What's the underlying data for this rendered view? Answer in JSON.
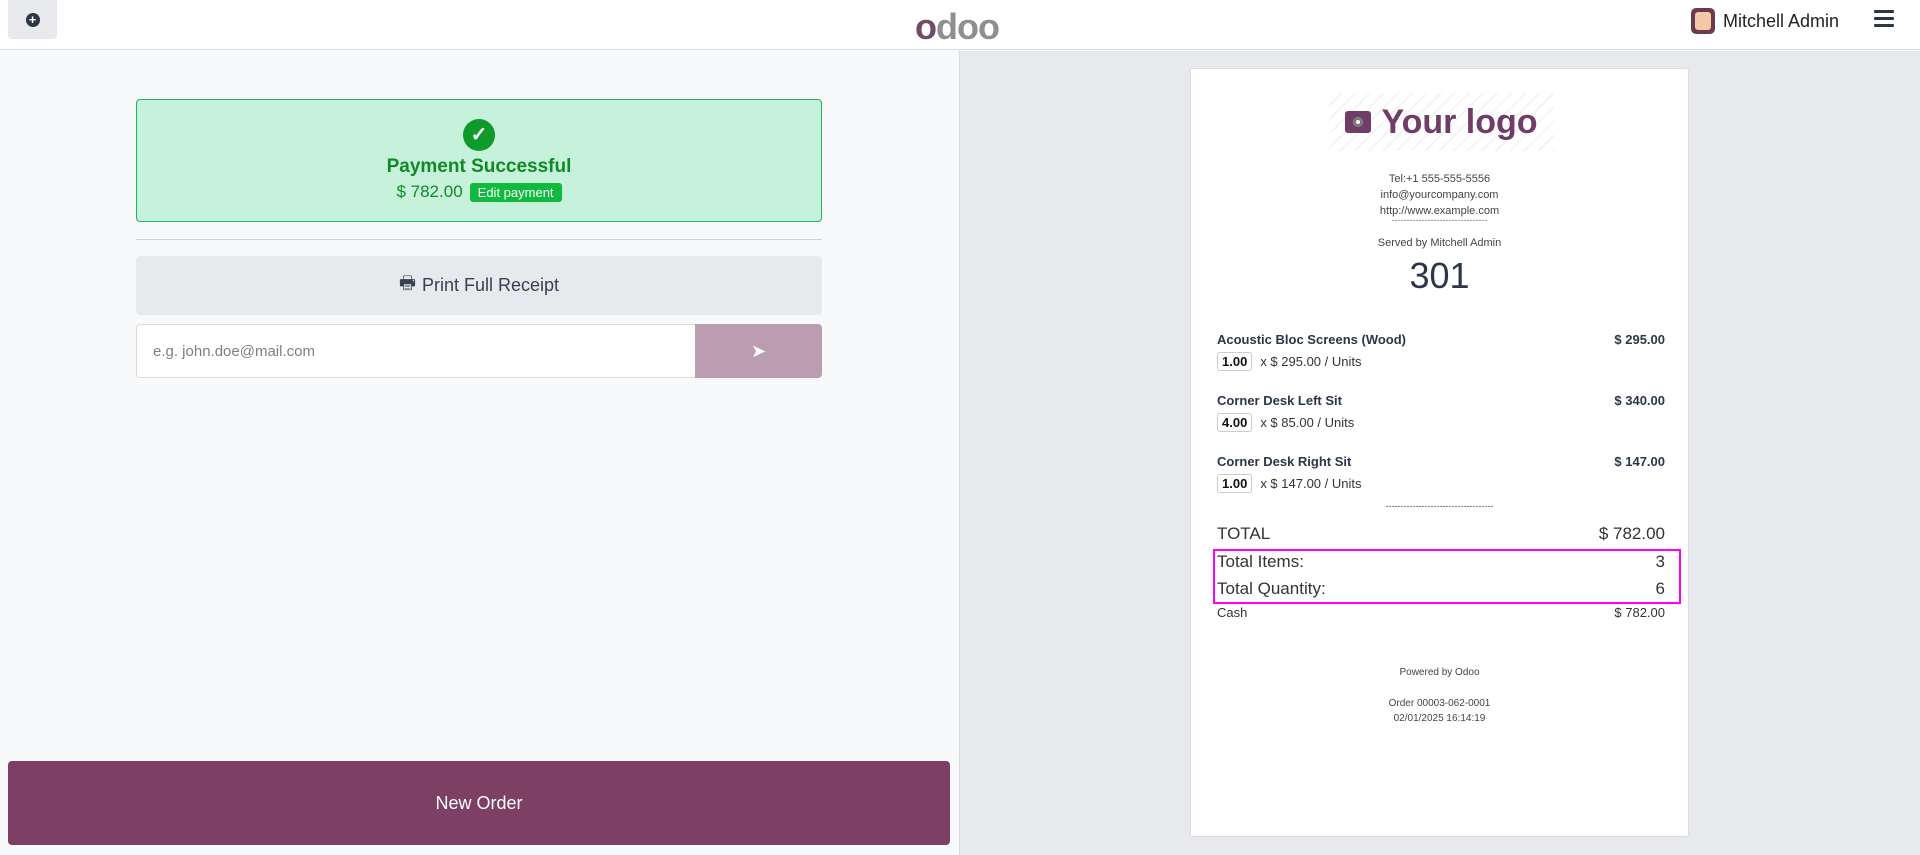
{
  "topbar": {
    "brand": "odoo",
    "user_name": "Mitchell Admin"
  },
  "payment": {
    "title": "Payment Successful",
    "amount": "$ 782.00",
    "edit_label": "Edit payment"
  },
  "print_label": "Print Full Receipt",
  "email": {
    "placeholder": "e.g. john.doe@mail.com",
    "value": ""
  },
  "new_order_label": "New Order",
  "receipt": {
    "logo_text": "Your logo",
    "tel": "Tel:+1 555-555-5556",
    "email": "info@yourcompany.com",
    "website": "http://www.example.com",
    "separator": "--------------------------------",
    "served_by": "Served by Mitchell Admin",
    "order_number": "301",
    "items": [
      {
        "name": "Acoustic Bloc Screens (Wood)",
        "price": "$ 295.00",
        "qty": "1.00",
        "unit_price": "x $ 295.00 / Units"
      },
      {
        "name": "Corner Desk Left Sit",
        "price": "$ 340.00",
        "qty": "4.00",
        "unit_price": "x $ 85.00 / Units"
      },
      {
        "name": "Corner Desk Right Sit",
        "price": "$ 147.00",
        "qty": "1.00",
        "unit_price": "x $ 147.00 / Units"
      }
    ],
    "separator2": "------------------------------------",
    "total_label": "TOTAL",
    "total_value": "$ 782.00",
    "total_items_label": "Total Items:",
    "total_items_value": "3",
    "total_qty_label": "Total Quantity:",
    "total_qty_value": "6",
    "cash_label": "Cash",
    "cash_value": "$ 782.00",
    "powered_by": "Powered by Odoo",
    "order_ref": "Order 00003-062-0001",
    "datetime": "02/01/2025 16:14:19"
  },
  "colors": {
    "brand": "#714b67",
    "success_bg": "#c6f1da",
    "success_text": "#108a25",
    "new_order": "#7d3f64",
    "highlight": "#ff00ff"
  }
}
